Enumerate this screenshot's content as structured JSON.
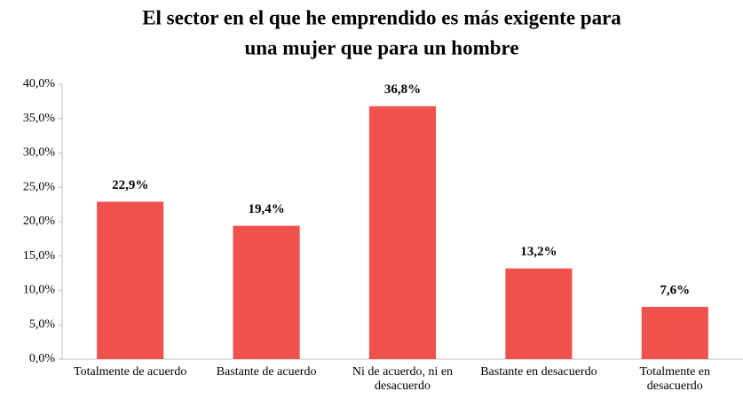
{
  "chart_data": {
    "type": "bar",
    "title": [
      "El sector en el que he emprendido es más exigente para",
      "una mujer que para un hombre"
    ],
    "categories": [
      "Totalmente de acuerdo",
      "Bastante de acuerdo",
      "Ni de acuerdo, ni en desacuerdo",
      "Bastante en desacuerdo",
      "Totalmente en desacuerdo"
    ],
    "values": [
      22.9,
      19.4,
      36.8,
      13.2,
      7.6
    ],
    "value_labels": [
      "22,9%",
      "19,4%",
      "36,8%",
      "13,2%",
      "7,6%"
    ],
    "color": "#ef524c",
    "ylim": [
      0,
      40
    ],
    "yticks": [
      {
        "value": 0,
        "label": "0,0%"
      },
      {
        "value": 5,
        "label": "5,0%"
      },
      {
        "value": 10,
        "label": "10,0%"
      },
      {
        "value": 15,
        "label": "15,0%"
      },
      {
        "value": 20,
        "label": "20,0%"
      },
      {
        "value": 25,
        "label": "25,0%"
      },
      {
        "value": 30,
        "label": "30,0%"
      },
      {
        "value": 35,
        "label": "35,0%"
      },
      {
        "value": 40,
        "label": "40,0%"
      }
    ],
    "grid": false
  }
}
